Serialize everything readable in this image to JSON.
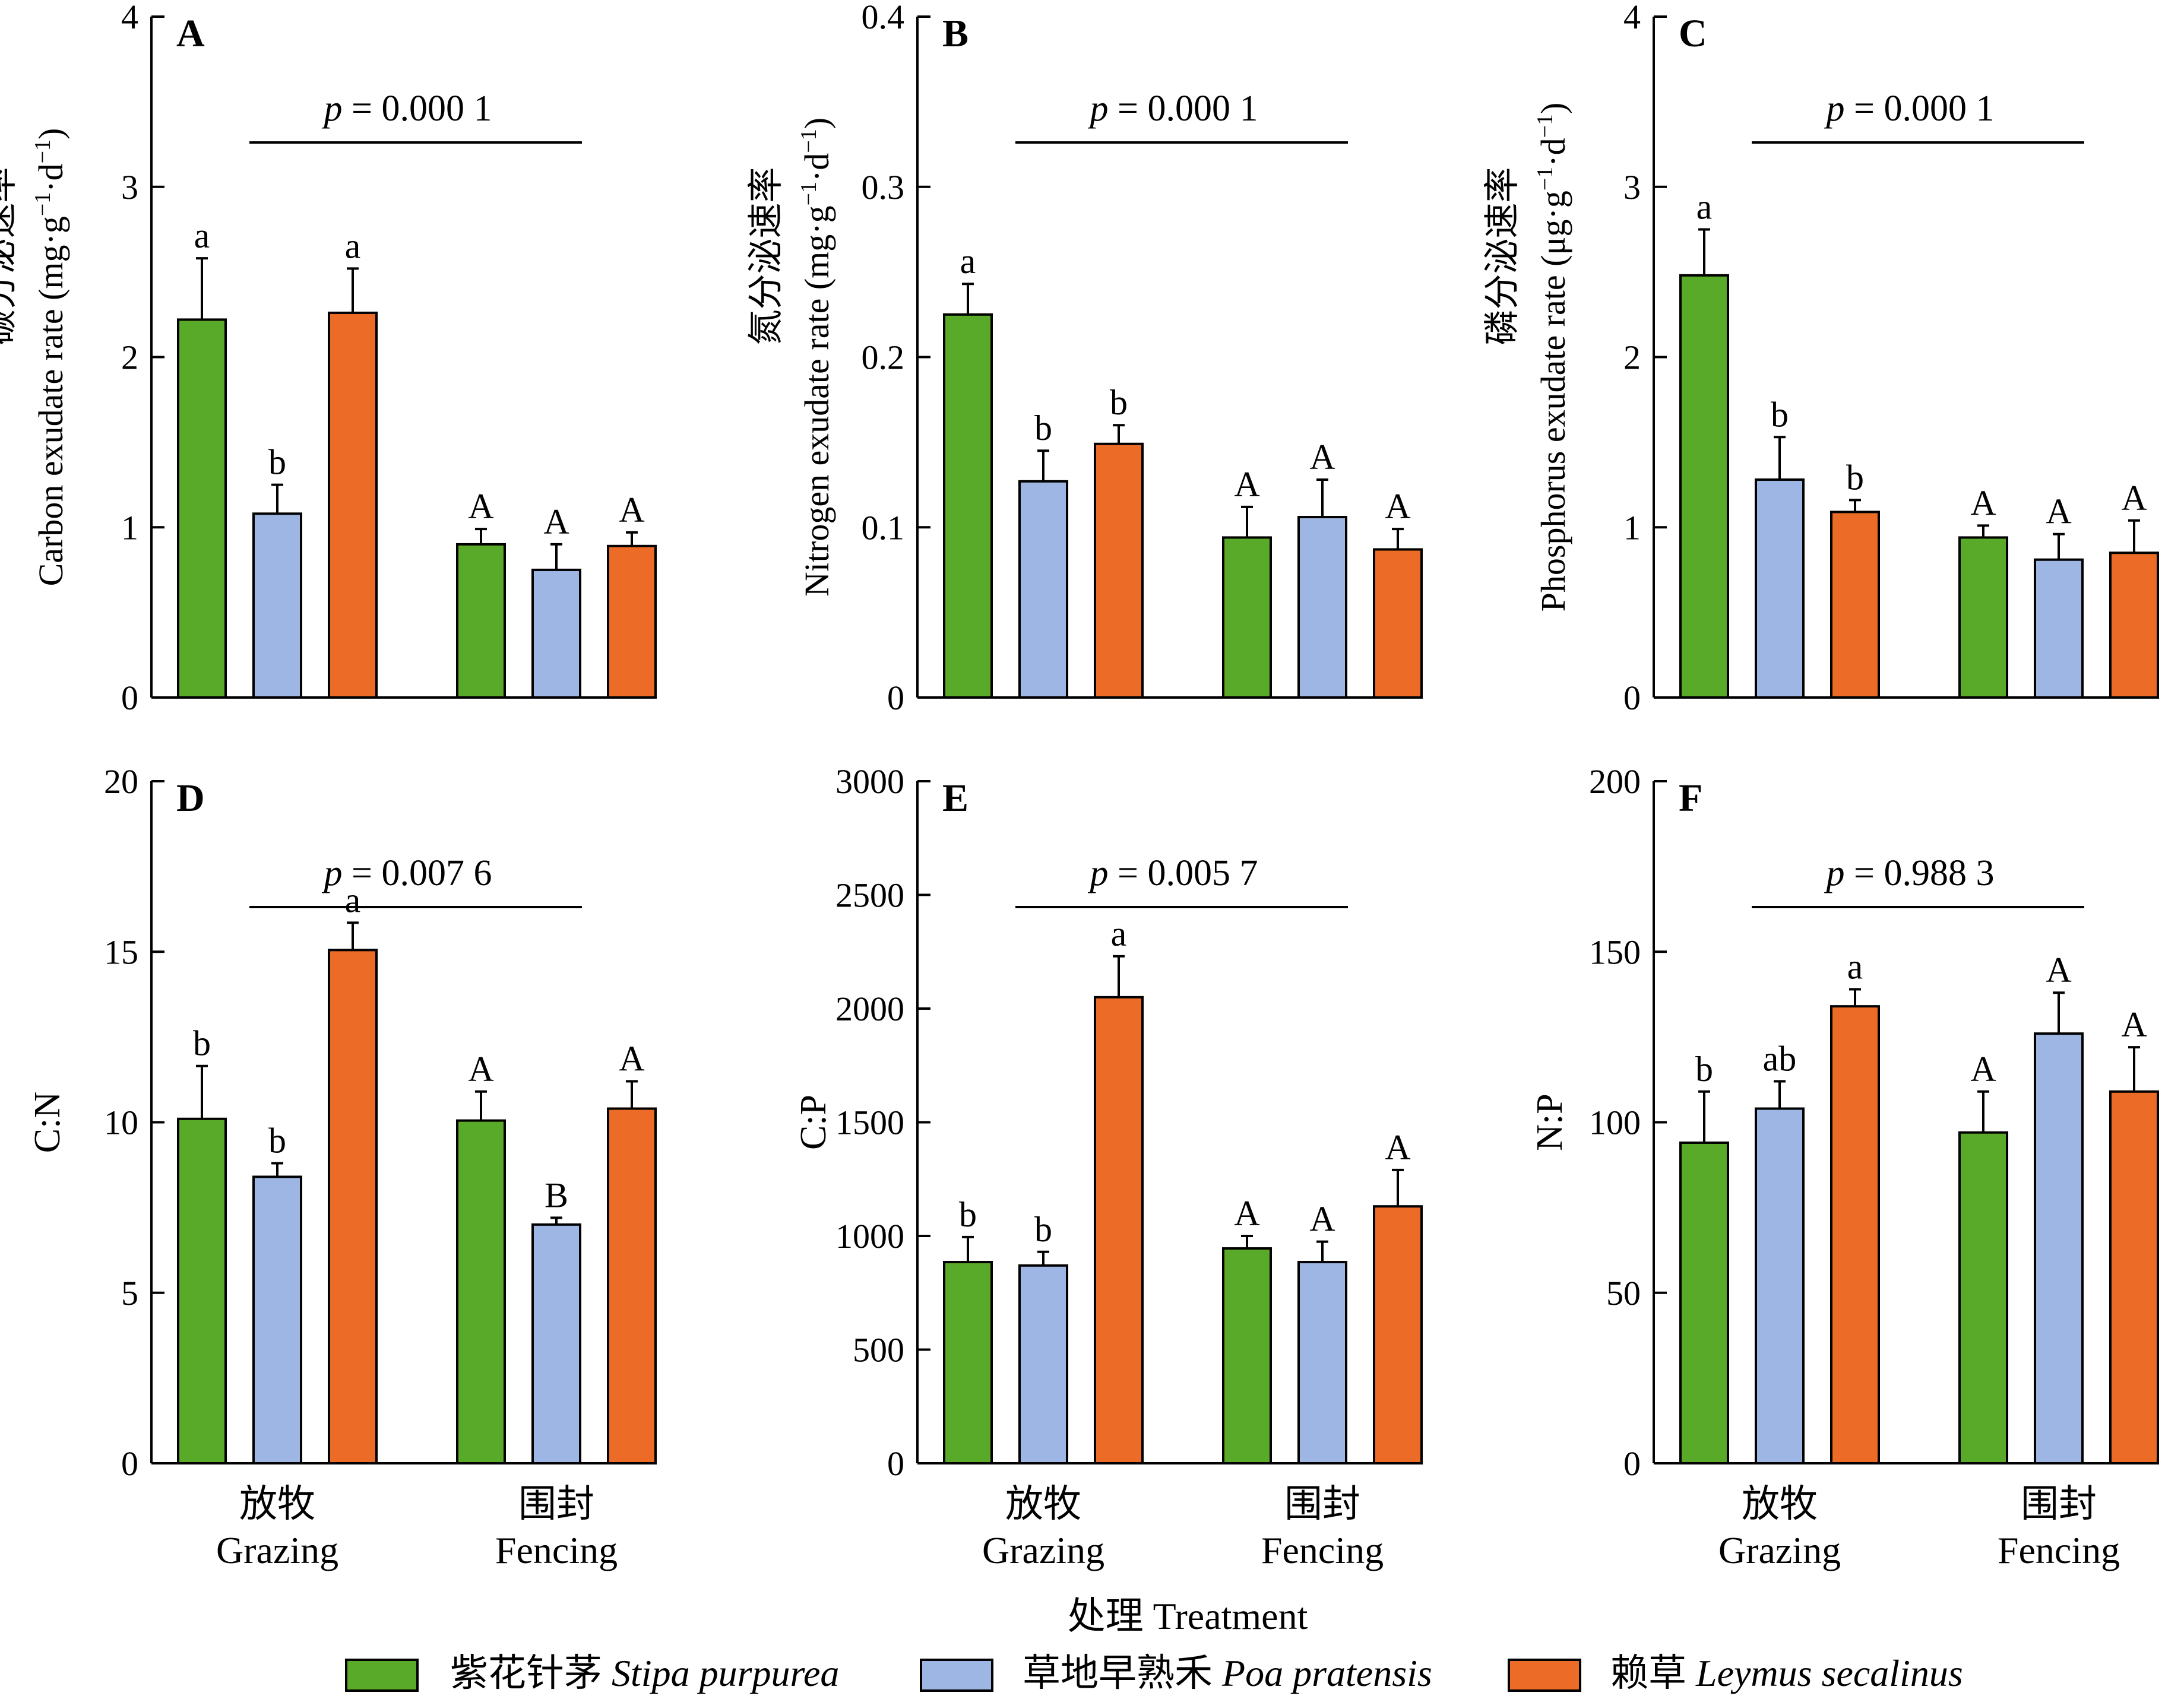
{
  "colors": {
    "stipa": "#5aaa2a",
    "poa": "#9db6e4",
    "leymus": "#ec6c27",
    "axis": "#000000"
  },
  "x_title": "处理 Treatment",
  "groups": [
    {
      "cn": "放牧",
      "en": "Grazing"
    },
    {
      "cn": "围封",
      "en": "Fencing"
    }
  ],
  "legend": [
    {
      "cn": "紫花针茅",
      "latin": "Stipa purpurea",
      "color_key": "stipa"
    },
    {
      "cn": "草地早熟禾",
      "latin": "Poa pratensis",
      "color_key": "poa"
    },
    {
      "cn": "赖草",
      "latin": "Leymus secalinus",
      "color_key": "leymus"
    }
  ],
  "chart_data": [
    {
      "type": "bar",
      "panel": "A",
      "ylabel_cn": "碳分泌速率",
      "ylabel_en": "Carbon exudate rate (mg·g",
      "ylabel_unit_tail": "·d",
      "ylabel_sup": "−1",
      "ylim": [
        0,
        4
      ],
      "yticks": [
        "0",
        "1",
        "2",
        "3",
        "4"
      ],
      "ytick_values": [
        0,
        1,
        2,
        3,
        4
      ],
      "p_prefix": "p",
      "p_text": " = 0.000 1",
      "categories": [
        "放牧 Grazing",
        "围封 Fencing"
      ],
      "series": [
        {
          "name": "紫花针茅 Stipa purpurea",
          "values": [
            2.22,
            0.9
          ],
          "errors": [
            0.36,
            0.09
          ],
          "letters": [
            "a",
            "A"
          ]
        },
        {
          "name": "草地早熟禾 Poa pratensis",
          "values": [
            1.08,
            0.75
          ],
          "errors": [
            0.17,
            0.15
          ],
          "letters": [
            "b",
            "A"
          ]
        },
        {
          "name": "赖草 Leymus secalinus",
          "values": [
            2.26,
            0.89
          ],
          "errors": [
            0.26,
            0.08
          ],
          "letters": [
            "a",
            "A"
          ]
        }
      ]
    },
    {
      "type": "bar",
      "panel": "B",
      "ylabel_cn": "氮分泌速率",
      "ylabel_en": "Nitrogen exudate rate (mg·g",
      "ylabel_unit_tail": "·d",
      "ylabel_sup": "−1",
      "ylim": [
        0,
        0.4
      ],
      "yticks": [
        "0",
        "0.1",
        "0.2",
        "0.3",
        "0.4"
      ],
      "ytick_values": [
        0,
        0.1,
        0.2,
        0.3,
        0.4
      ],
      "p_prefix": "p",
      "p_text": " = 0.000 1",
      "categories": [
        "放牧 Grazing",
        "围封 Fencing"
      ],
      "series": [
        {
          "name": "紫花针茅 Stipa purpurea",
          "values": [
            0.225,
            0.094
          ],
          "errors": [
            0.018,
            0.018
          ],
          "letters": [
            "a",
            "A"
          ]
        },
        {
          "name": "草地早熟禾 Poa pratensis",
          "values": [
            0.127,
            0.106
          ],
          "errors": [
            0.018,
            0.022
          ],
          "letters": [
            "b",
            "A"
          ]
        },
        {
          "name": "赖草 Leymus secalinus",
          "values": [
            0.149,
            0.087
          ],
          "errors": [
            0.011,
            0.012
          ],
          "letters": [
            "b",
            "A"
          ]
        }
      ]
    },
    {
      "type": "bar",
      "panel": "C",
      "ylabel_cn": "磷分泌速率",
      "ylabel_en": "Phosphorus exudate rate (μg·g",
      "ylabel_unit_tail": "·d",
      "ylabel_sup": "−1",
      "ylim": [
        0,
        4
      ],
      "yticks": [
        "0",
        "1",
        "2",
        "3",
        "4"
      ],
      "ytick_values": [
        0,
        1,
        2,
        3,
        4
      ],
      "p_prefix": "p",
      "p_text": " = 0.000 1",
      "categories": [
        "放牧 Grazing",
        "围封 Fencing"
      ],
      "series": [
        {
          "name": "紫花针茅 Stipa purpurea",
          "values": [
            2.48,
            0.94
          ],
          "errors": [
            0.27,
            0.07
          ],
          "letters": [
            "a",
            "A"
          ]
        },
        {
          "name": "草地早熟禾 Poa pratensis",
          "values": [
            1.28,
            0.81
          ],
          "errors": [
            0.25,
            0.15
          ],
          "letters": [
            "b",
            "A"
          ]
        },
        {
          "name": "赖草 Leymus secalinus",
          "values": [
            1.09,
            0.85
          ],
          "errors": [
            0.07,
            0.19
          ],
          "letters": [
            "b",
            "A"
          ]
        }
      ]
    },
    {
      "type": "bar",
      "panel": "D",
      "ylabel": "C:N",
      "ylim": [
        0,
        20
      ],
      "yticks": [
        "0",
        "5",
        "10",
        "15",
        "20"
      ],
      "ytick_values": [
        0,
        5,
        10,
        15,
        20
      ],
      "p_prefix": "p",
      "p_text": " = 0.007 6",
      "categories": [
        "放牧 Grazing",
        "围封 Fencing"
      ],
      "series": [
        {
          "name": "紫花针茅 Stipa purpurea",
          "values": [
            10.1,
            10.05
          ],
          "errors": [
            1.55,
            0.85
          ],
          "letters": [
            "b",
            "A"
          ]
        },
        {
          "name": "草地早熟禾 Poa pratensis",
          "values": [
            8.4,
            7.0
          ],
          "errors": [
            0.4,
            0.2
          ],
          "letters": [
            "b",
            "B"
          ]
        },
        {
          "name": "赖草 Leymus secalinus",
          "values": [
            15.05,
            10.4
          ],
          "errors": [
            0.8,
            0.8
          ],
          "letters": [
            "a",
            "A"
          ]
        }
      ]
    },
    {
      "type": "bar",
      "panel": "E",
      "ylabel": "C:P",
      "ylim": [
        0,
        3000
      ],
      "yticks": [
        "0",
        "500",
        "1000",
        "1500",
        "2000",
        "2500",
        "3000"
      ],
      "ytick_values": [
        0,
        500,
        1000,
        1500,
        2000,
        2500,
        3000
      ],
      "p_prefix": "p",
      "p_text": " = 0.005 7",
      "categories": [
        "放牧 Grazing",
        "围封 Fencing"
      ],
      "series": [
        {
          "name": "紫花针茅 Stipa purpurea",
          "values": [
            885,
            945
          ],
          "errors": [
            110,
            55
          ],
          "letters": [
            "b",
            "A"
          ]
        },
        {
          "name": "草地早熟禾 Poa pratensis",
          "values": [
            870,
            885
          ],
          "errors": [
            60,
            90
          ],
          "letters": [
            "b",
            "A"
          ]
        },
        {
          "name": "赖草 Leymus secalinus",
          "values": [
            2050,
            1130
          ],
          "errors": [
            180,
            160
          ],
          "letters": [
            "a",
            "A"
          ]
        }
      ]
    },
    {
      "type": "bar",
      "panel": "F",
      "ylabel": "N:P",
      "ylim": [
        0,
        200
      ],
      "yticks": [
        "0",
        "50",
        "100",
        "150",
        "200"
      ],
      "ytick_values": [
        0,
        50,
        100,
        150,
        200
      ],
      "p_prefix": "p",
      "p_text": " = 0.988 3",
      "categories": [
        "放牧 Grazing",
        "围封 Fencing"
      ],
      "series": [
        {
          "name": "紫花针茅 Stipa purpurea",
          "values": [
            94,
            97
          ],
          "errors": [
            15,
            12
          ],
          "letters": [
            "b",
            "A"
          ]
        },
        {
          "name": "草地早熟禾 Poa pratensis",
          "values": [
            104,
            126
          ],
          "errors": [
            8,
            12
          ],
          "letters": [
            "ab",
            "A"
          ]
        },
        {
          "name": "赖草 Leymus secalinus",
          "values": [
            134,
            109
          ],
          "errors": [
            5,
            13
          ],
          "letters": [
            "a",
            "A"
          ]
        }
      ]
    }
  ]
}
